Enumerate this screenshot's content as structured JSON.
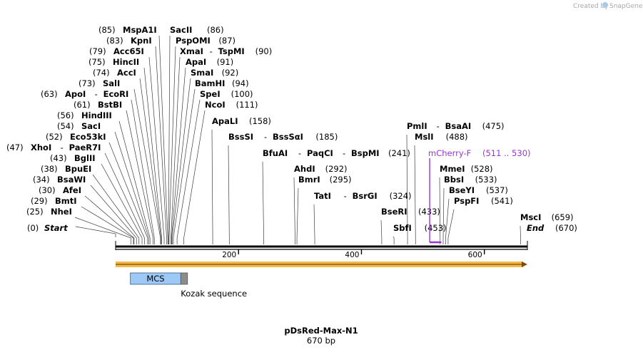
{
  "credit": {
    "text": "Created by",
    "brand": "SnapGene"
  },
  "sequence": {
    "length": 670,
    "name": "pDsRed-Max-N1",
    "length_label": "670 bp",
    "start_label": "Start",
    "start_pos": "(0)",
    "end_label": "End",
    "end_pos": "(670)"
  },
  "ruler": {
    "ticks": [
      {
        "pos": 200,
        "label": "200"
      },
      {
        "pos": 400,
        "label": "400"
      },
      {
        "pos": 600,
        "label": "600"
      }
    ]
  },
  "sites": [
    {
      "pos": 25,
      "text": "(25)",
      "names": [
        "NheI"
      ]
    },
    {
      "pos": 29,
      "text": "(29)",
      "names": [
        "BmtI"
      ]
    },
    {
      "pos": 30,
      "text": "(30)",
      "names": [
        "AfeI"
      ]
    },
    {
      "pos": 34,
      "text": "(34)",
      "names": [
        "BsaWI"
      ]
    },
    {
      "pos": 38,
      "text": "(38)",
      "names": [
        "BpuEI"
      ]
    },
    {
      "pos": 43,
      "text": "(43)",
      "names": [
        "BglII"
      ]
    },
    {
      "pos": 47,
      "text": "(47)",
      "names": [
        "XhoI",
        "PaeR7I"
      ]
    },
    {
      "pos": 52,
      "text": "(52)",
      "names": [
        "Eco53kI"
      ]
    },
    {
      "pos": 54,
      "text": "(54)",
      "names": [
        "SacI"
      ]
    },
    {
      "pos": 56,
      "text": "(56)",
      "names": [
        "HindIII"
      ]
    },
    {
      "pos": 61,
      "text": "(61)",
      "names": [
        "BstBI"
      ]
    },
    {
      "pos": 63,
      "text": "(63)",
      "names": [
        "ApoI",
        "EcoRI"
      ]
    },
    {
      "pos": 73,
      "text": "(73)",
      "names": [
        "SalI"
      ]
    },
    {
      "pos": 74,
      "text": "(74)",
      "names": [
        "AccI"
      ]
    },
    {
      "pos": 75,
      "text": "(75)",
      "names": [
        "HincII"
      ]
    },
    {
      "pos": 79,
      "text": "(79)",
      "names": [
        "Acc65I"
      ]
    },
    {
      "pos": 83,
      "text": "(83)",
      "names": [
        "KpnI"
      ]
    },
    {
      "pos": 85,
      "text": "(85)",
      "names": [
        "MspA1I"
      ]
    },
    {
      "pos": 86,
      "text": "(86)",
      "names": [
        "SacII"
      ]
    },
    {
      "pos": 87,
      "text": "(87)",
      "names": [
        "PspOMI"
      ]
    },
    {
      "pos": 90,
      "text": "(90)",
      "names": [
        "XmaI",
        "TspMI"
      ]
    },
    {
      "pos": 91,
      "text": "(91)",
      "names": [
        "ApaI"
      ]
    },
    {
      "pos": 92,
      "text": "(92)",
      "names": [
        "SmaI"
      ]
    },
    {
      "pos": 94,
      "text": "(94)",
      "names": [
        "BamHI"
      ]
    },
    {
      "pos": 100,
      "text": "(100)",
      "names": [
        "SpeI"
      ]
    },
    {
      "pos": 111,
      "text": "(111)",
      "names": [
        "NcoI"
      ]
    },
    {
      "pos": 158,
      "text": "(158)",
      "names": [
        "ApaLI"
      ]
    },
    {
      "pos": 185,
      "text": "(185)",
      "names": [
        "BssSI",
        "BssSαI"
      ]
    },
    {
      "pos": 241,
      "text": "(241)",
      "names": [
        "BfuAI",
        "PaqCI",
        "BspMI"
      ]
    },
    {
      "pos": 292,
      "text": "(292)",
      "names": [
        "AhdI"
      ]
    },
    {
      "pos": 295,
      "text": "(295)",
      "names": [
        "BmrI"
      ]
    },
    {
      "pos": 324,
      "text": "(324)",
      "names": [
        "TatI",
        "BsrGI"
      ]
    },
    {
      "pos": 433,
      "text": "(433)",
      "names": [
        "BseRI"
      ]
    },
    {
      "pos": 453,
      "text": "(453)",
      "names": [
        "SbfI"
      ]
    },
    {
      "pos": 475,
      "text": "(475)",
      "names": [
        "PmlI",
        "BsaAI"
      ]
    },
    {
      "pos": 488,
      "text": "(488)",
      "names": [
        "MslI"
      ]
    },
    {
      "pos": 528,
      "text": "(528)",
      "names": [
        "MmeI"
      ]
    },
    {
      "pos": 533,
      "text": "(533)",
      "names": [
        "BbsI"
      ]
    },
    {
      "pos": 537,
      "text": "(537)",
      "names": [
        "BseYI"
      ]
    },
    {
      "pos": 541,
      "text": "(541)",
      "names": [
        "PspFI"
      ]
    },
    {
      "pos": 659,
      "text": "(659)",
      "names": [
        "MscI"
      ]
    }
  ],
  "primer": {
    "name": "mCherry-F",
    "range": "(511 .. 530)",
    "start": 511,
    "end": 530,
    "color": "#9b34d6"
  },
  "features": [
    {
      "name": "MCS",
      "start": 24,
      "end": 106,
      "color": "#9cc9f5"
    },
    {
      "name": "Kozak sequence",
      "start": 106,
      "end": 117,
      "color": "#8c8c8c"
    }
  ],
  "orf": {
    "start": 0,
    "end": 670,
    "color": "#f3b84a"
  }
}
